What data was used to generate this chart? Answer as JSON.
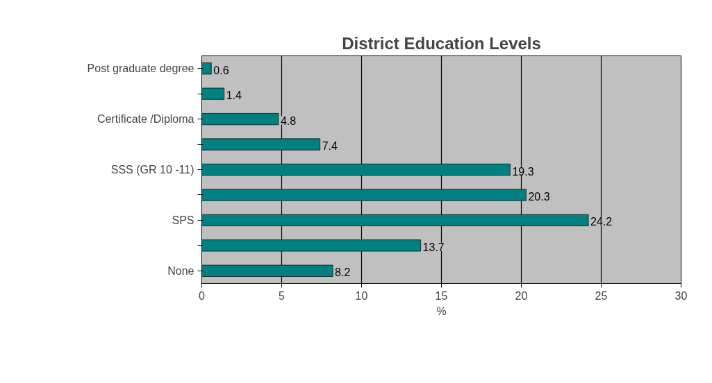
{
  "chart_data": {
    "type": "bar",
    "orientation": "horizontal",
    "title": "District Education Levels",
    "xlabel": "%",
    "categories": [
      "Post graduate degree",
      null,
      "Certificate /Diploma",
      null,
      "SSS (GR 10 -11)",
      null,
      "SPS",
      null,
      "None"
    ],
    "values": [
      0.6,
      1.4,
      4.8,
      7.4,
      19.3,
      20.3,
      24.2,
      13.7,
      8.2
    ],
    "color": "#008080",
    "xlim": [
      0,
      30
    ],
    "xticks": [
      0,
      5,
      10,
      15,
      20,
      25,
      30
    ],
    "grid": "x",
    "data_labels": true
  }
}
